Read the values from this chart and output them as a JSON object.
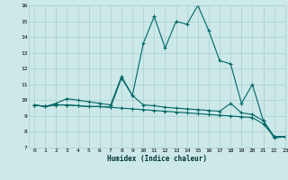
{
  "xlabel": "Humidex (Indice chaleur)",
  "xlim": [
    -0.5,
    23
  ],
  "ylim": [
    7,
    16
  ],
  "yticks": [
    7,
    8,
    9,
    10,
    11,
    12,
    13,
    14,
    15,
    16
  ],
  "xticks": [
    0,
    1,
    2,
    3,
    4,
    5,
    6,
    7,
    8,
    9,
    10,
    11,
    12,
    13,
    14,
    15,
    16,
    17,
    18,
    19,
    20,
    21,
    22,
    23
  ],
  "bg_color": "#cce8e8",
  "grid_color": "#aacfcf",
  "line_color": "#006666",
  "line1_y": [
    9.7,
    9.6,
    9.8,
    10.1,
    10.0,
    9.9,
    9.8,
    9.7,
    11.5,
    10.3,
    13.6,
    15.3,
    13.3,
    15.0,
    14.8,
    16.0,
    14.4,
    12.5,
    12.3,
    9.8,
    11.0,
    8.7,
    7.6,
    7.7
  ],
  "line2_y": [
    9.7,
    9.6,
    9.7,
    9.7,
    9.65,
    9.6,
    9.6,
    9.55,
    9.5,
    9.45,
    9.4,
    9.35,
    9.3,
    9.25,
    9.2,
    9.15,
    9.1,
    9.05,
    9.0,
    8.95,
    8.9,
    8.5,
    7.7,
    7.7
  ],
  "line3_y": [
    9.7,
    9.6,
    9.7,
    9.7,
    9.65,
    9.6,
    9.6,
    9.55,
    11.4,
    10.3,
    9.7,
    9.65,
    9.55,
    9.5,
    9.45,
    9.4,
    9.35,
    9.3,
    9.8,
    9.2,
    9.1,
    8.7,
    7.7,
    7.7
  ]
}
